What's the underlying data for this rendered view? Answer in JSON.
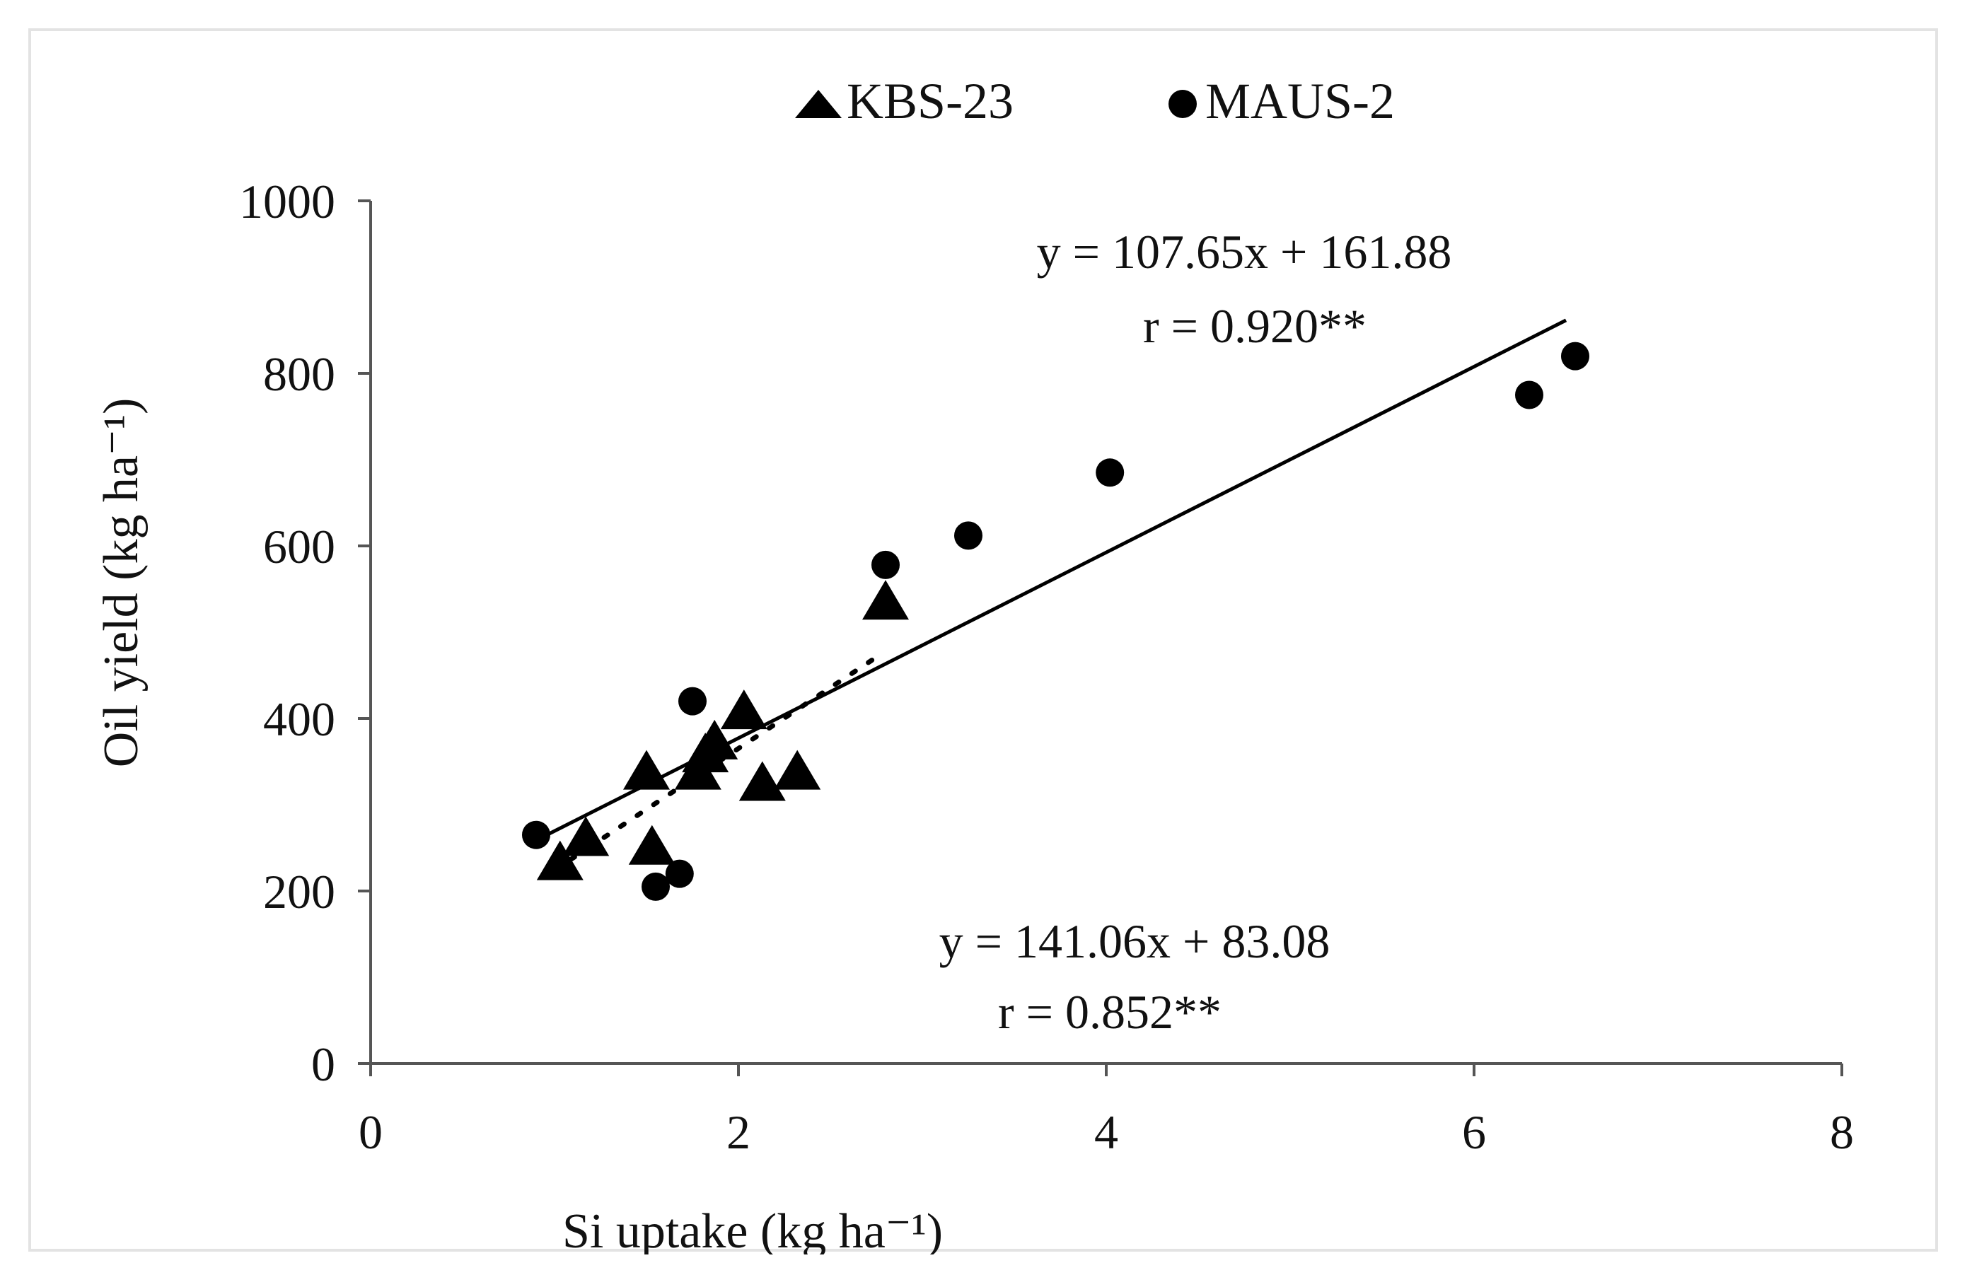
{
  "chart_data": {
    "type": "scatter",
    "xlabel": "Si uptake (kg ha⁻¹)",
    "ylabel": "Oil yield (kg ha⁻¹)",
    "xlim": [
      0,
      8
    ],
    "ylim": [
      0,
      1000
    ],
    "x_ticks": [
      "0",
      "2",
      "4",
      "6",
      "8"
    ],
    "y_ticks": [
      "0",
      "200",
      "400",
      "600",
      "800",
      "1000"
    ],
    "grid": false,
    "legend_position": "top-center",
    "series": [
      {
        "name": "KBS-23",
        "marker": "triangle",
        "color": "#000000",
        "points": [
          {
            "x": 1.03,
            "y": 230
          },
          {
            "x": 1.17,
            "y": 258
          },
          {
            "x": 1.5,
            "y": 335
          },
          {
            "x": 1.53,
            "y": 248
          },
          {
            "x": 1.78,
            "y": 335
          },
          {
            "x": 1.82,
            "y": 355
          },
          {
            "x": 1.87,
            "y": 370
          },
          {
            "x": 2.03,
            "y": 405
          },
          {
            "x": 2.13,
            "y": 322
          },
          {
            "x": 2.32,
            "y": 335
          },
          {
            "x": 2.8,
            "y": 532
          }
        ],
        "trendline": {
          "slope": 141.06,
          "intercept": 83.08,
          "x_range": [
            1.0,
            2.75
          ],
          "style": "dotted"
        },
        "equation": "y = 141.06x + 83.08",
        "r_label": "r = 0.852**"
      },
      {
        "name": "MAUS-2",
        "marker": "circle",
        "color": "#000000",
        "points": [
          {
            "x": 0.9,
            "y": 265
          },
          {
            "x": 1.55,
            "y": 205
          },
          {
            "x": 1.68,
            "y": 220
          },
          {
            "x": 1.75,
            "y": 420
          },
          {
            "x": 2.8,
            "y": 578
          },
          {
            "x": 3.25,
            "y": 612
          },
          {
            "x": 4.02,
            "y": 685
          },
          {
            "x": 6.3,
            "y": 775
          },
          {
            "x": 6.55,
            "y": 820
          }
        ],
        "trendline": {
          "slope": 107.65,
          "intercept": 161.88,
          "x_range": [
            0.95,
            6.5
          ],
          "style": "solid"
        },
        "equation": "y = 107.65x + 161.88",
        "r_label": "r = 0.920**"
      }
    ]
  }
}
